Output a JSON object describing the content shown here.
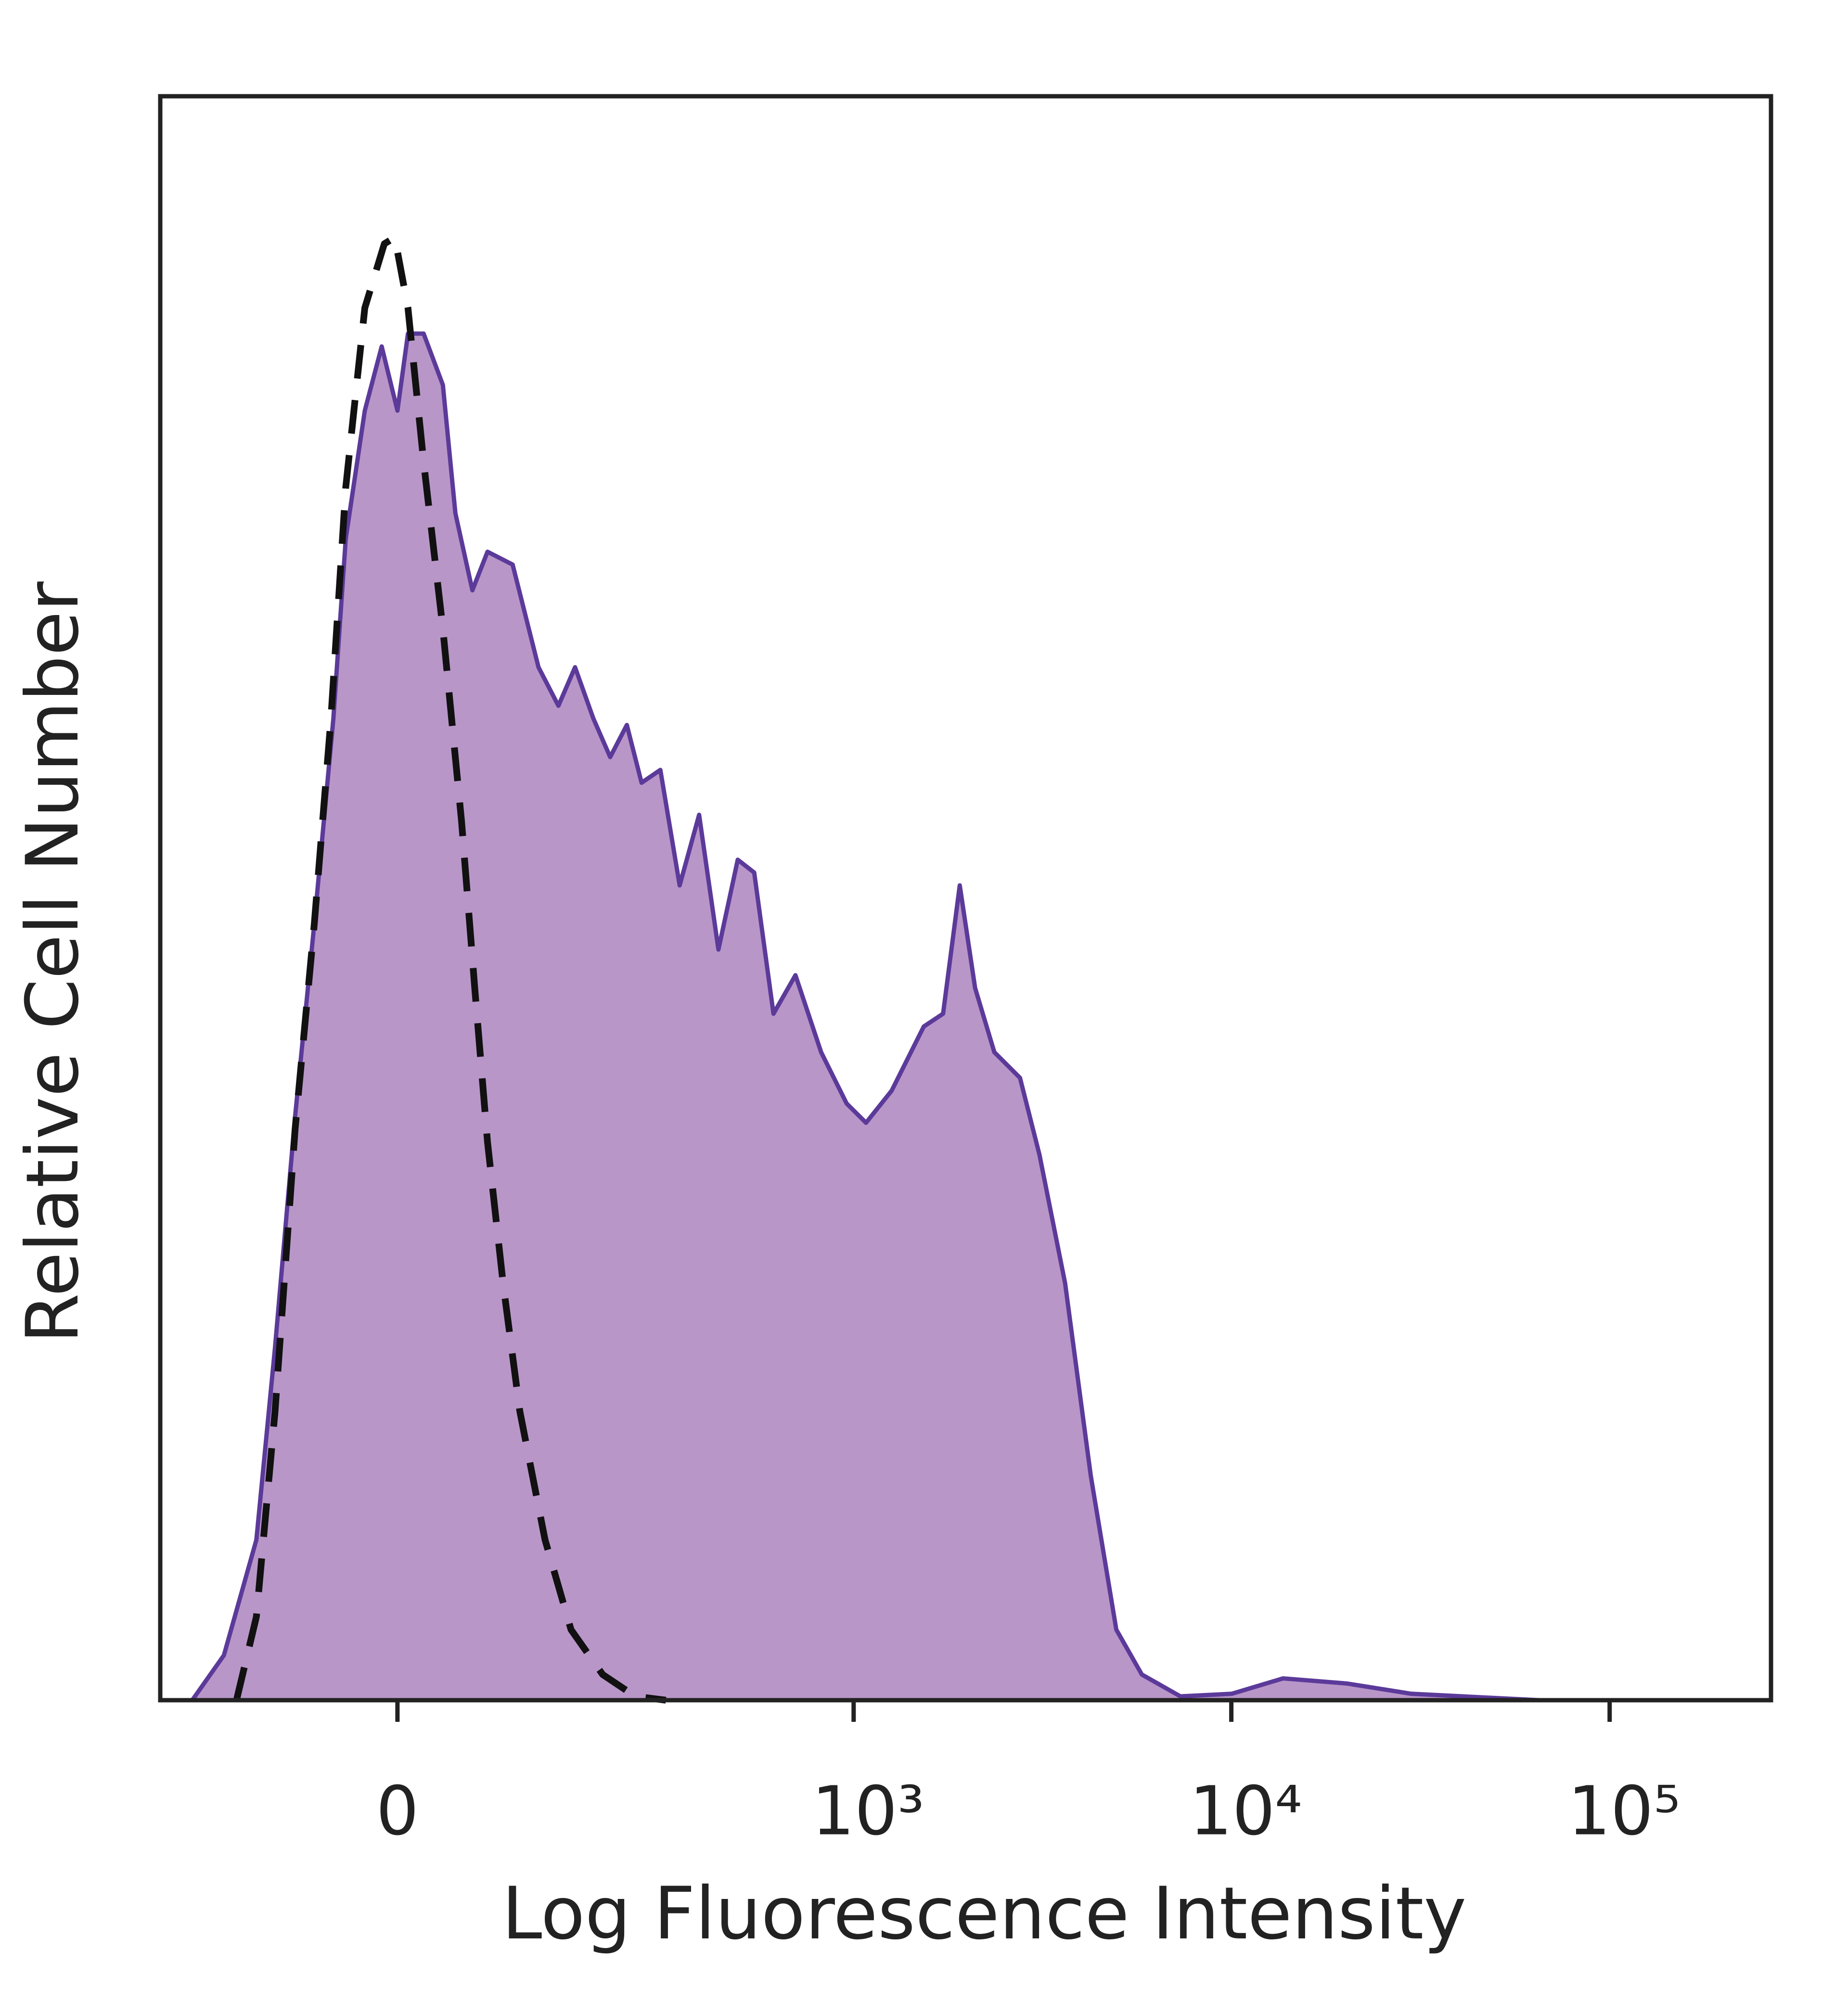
{
  "chart_data": {
    "type": "area",
    "xlabel": "Log Fluorescence Intensity",
    "ylabel": "Relative Cell Number",
    "xscale": "biexponential",
    "xlim": [
      -250,
      267000
    ],
    "xticks": [
      0,
      {
        "value": 1000,
        "label": "10³"
      },
      {
        "value": 10000,
        "label": "10⁴"
      },
      {
        "value": 100000,
        "label": "10⁵"
      }
    ],
    "ylim": [
      0,
      100
    ],
    "series": [
      {
        "color": "#5b3a9a",
        "fill": "#b996c8",
        "style": "solid",
        "x": [
          -200,
          -158,
          -121,
          -102,
          -83,
          -66,
          -50,
          -40,
          -25,
          -12,
          0,
          8,
          20,
          35,
          45,
          59,
          72,
          95,
          121,
          143,
          163,
          187,
          211,
          237,
          262,
          297,
          337,
          382,
          432,
          488,
          541,
          610,
          699,
          819,
          958,
          1079,
          1262,
          1536,
          1728,
          1913,
          2101,
          2362,
          2762,
          3110,
          3635,
          4250,
          4965,
          5800,
          7335,
          10025,
          13700,
          20200,
          29900,
          65000,
          227000
        ],
        "values": [
          0,
          2.8,
          10,
          22,
          36.4,
          48.4,
          61.2,
          72.4,
          80.4,
          84.4,
          80.4,
          85.2,
          85.2,
          82,
          74,
          69.2,
          71.6,
          70.8,
          64.4,
          62,
          64.4,
          61.2,
          58.8,
          60.8,
          57.2,
          58,
          50.8,
          55.2,
          46.8,
          52.4,
          51.6,
          42.8,
          45.2,
          40.4,
          37.2,
          36,
          38,
          42,
          42.8,
          50.8,
          44.4,
          40.4,
          38.8,
          34,
          26,
          14,
          4.4,
          1.6,
          0.24,
          0.4,
          1.36,
          1.04,
          0.4,
          0,
          0
        ]
      },
      {
        "color": "#111111",
        "style": "dashed",
        "x": [
          -143,
          -121,
          -102,
          -83,
          -66,
          -52,
          -40,
          -25,
          -10,
          -2,
          8,
          20,
          35,
          50,
          61,
          72,
          86,
          102,
          128,
          158,
          200,
          251,
          308
        ],
        "values": [
          0,
          5.2,
          18,
          35.6,
          48.4,
          61.2,
          75.6,
          86.8,
          90.8,
          91.2,
          86.8,
          77.2,
          66.8,
          54.8,
          44.4,
          34.8,
          26,
          18,
          10,
          4.4,
          1.6,
          0.24,
          0
        ]
      }
    ]
  }
}
